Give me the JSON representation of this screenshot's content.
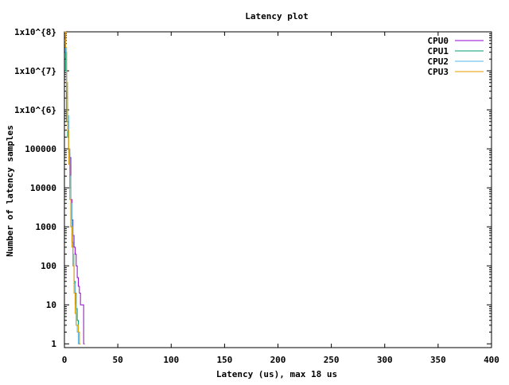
{
  "chart_data": {
    "type": "line",
    "title": "Latency plot",
    "xlabel": "Latency (us), max 18 us",
    "ylabel": "Number of latency samples",
    "xlim": [
      0,
      400
    ],
    "ylim": [
      0.8,
      100000000
    ],
    "y_scale": "log",
    "grid": false,
    "legend_position": "top-right",
    "x_ticks": [
      {
        "value": 0,
        "label": "0"
      },
      {
        "value": 50,
        "label": "50"
      },
      {
        "value": 100,
        "label": "100"
      },
      {
        "value": 150,
        "label": "150"
      },
      {
        "value": 200,
        "label": "200"
      },
      {
        "value": 250,
        "label": "250"
      },
      {
        "value": 300,
        "label": "300"
      },
      {
        "value": 350,
        "label": "350"
      },
      {
        "value": 400,
        "label": "400"
      }
    ],
    "y_ticks": [
      {
        "value": 1,
        "label": "1"
      },
      {
        "value": 10,
        "label": "10"
      },
      {
        "value": 100,
        "label": "100"
      },
      {
        "value": 1000,
        "label": "1000"
      },
      {
        "value": 10000,
        "label": "10000"
      },
      {
        "value": 100000,
        "label": "100000"
      },
      {
        "value": 1000000,
        "label": "1x10^{6}"
      },
      {
        "value": 10000000,
        "label": "1x10^{7}"
      },
      {
        "value": 100000000,
        "label": "1x10^{8}"
      }
    ],
    "series": [
      {
        "name": "CPU0",
        "color": "#9400d3",
        "x": [
          0,
          1,
          2,
          3,
          4,
          5,
          6,
          7,
          8,
          9,
          10,
          11,
          12,
          13,
          14,
          15,
          16,
          17,
          18
        ],
        "y": [
          80000000,
          30000000,
          2000000,
          500000,
          100000,
          60000,
          5000,
          1500,
          600,
          300,
          200,
          100,
          50,
          30,
          20,
          10,
          10,
          10,
          1
        ]
      },
      {
        "name": "CPU1",
        "color": "#009e73",
        "x": [
          0,
          1,
          2,
          3,
          4,
          5,
          6,
          7,
          8,
          9,
          10,
          11,
          12,
          13,
          14
        ],
        "y": [
          50000000,
          10000000,
          500000,
          200000,
          80000,
          10000,
          1000,
          400,
          100,
          40,
          20,
          8,
          4,
          2,
          1
        ]
      },
      {
        "name": "CPU2",
        "color": "#56b4e9",
        "x": [
          0,
          1,
          2,
          3,
          4,
          5,
          6,
          7,
          8,
          9,
          10,
          11,
          12,
          13
        ],
        "y": [
          60000000,
          30000000,
          3000000,
          700000,
          100000,
          20000,
          4000,
          1000,
          200,
          35,
          10,
          3,
          2,
          1
        ]
      },
      {
        "name": "CPU3",
        "color": "#e69f00",
        "x": [
          0,
          1,
          2,
          3,
          4,
          5,
          6,
          7,
          8,
          9,
          10,
          11,
          12,
          13,
          14
        ],
        "y": [
          100000000,
          40000000,
          5000000,
          300000,
          40000,
          5000,
          1000,
          300,
          100,
          20,
          6,
          3,
          3,
          2,
          1
        ]
      }
    ]
  }
}
